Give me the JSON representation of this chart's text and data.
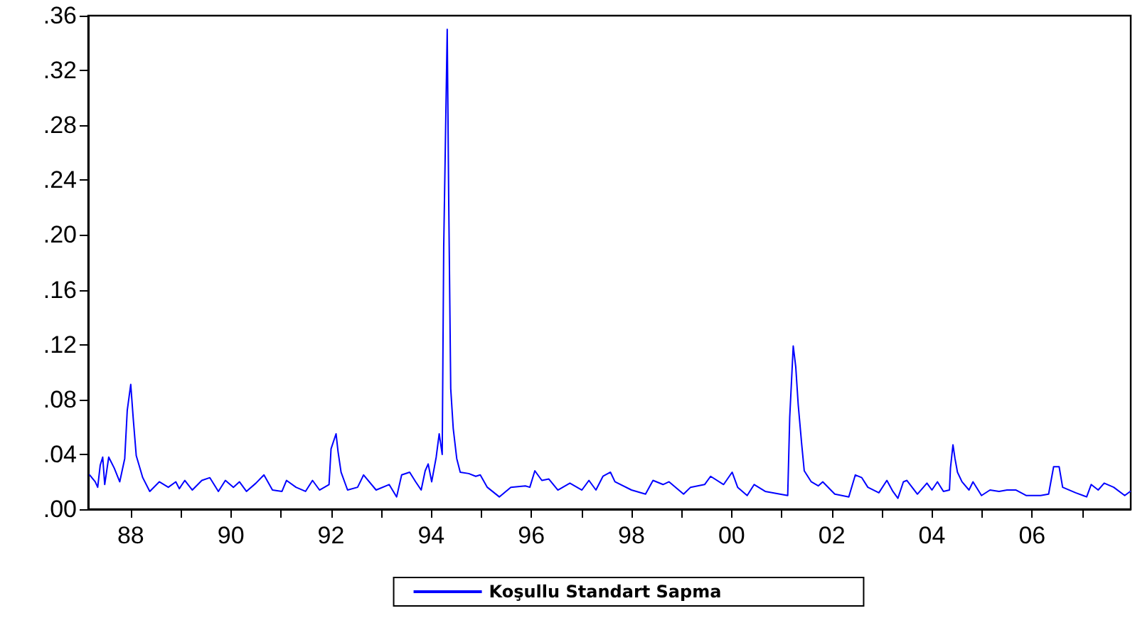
{
  "chart_data": {
    "type": "line",
    "x": [
      1987.18,
      1987.29,
      1987.34,
      1987.39,
      1987.44,
      1987.48,
      1987.56,
      1987.67,
      1987.78,
      1987.88,
      1987.93,
      1988.0,
      1988.05,
      1988.11,
      1988.24,
      1988.38,
      1988.57,
      1988.75,
      1988.9,
      1988.97,
      1989.08,
      1989.23,
      1989.42,
      1989.58,
      1989.75,
      1989.89,
      1990.05,
      1990.17,
      1990.31,
      1990.5,
      1990.66,
      1990.83,
      1991.02,
      1991.11,
      1991.3,
      1991.49,
      1991.63,
      1991.77,
      1991.96,
      1992.0,
      1992.1,
      1992.14,
      1992.2,
      1992.33,
      1992.53,
      1992.65,
      1992.9,
      1993.16,
      1993.31,
      1993.41,
      1993.57,
      1993.69,
      1993.8,
      1993.88,
      1993.94,
      1994.01,
      1994.1,
      1994.16,
      1994.22,
      1994.25,
      1994.32,
      1994.35,
      1994.39,
      1994.44,
      1994.51,
      1994.58,
      1994.75,
      1994.89,
      1994.98,
      1995.12,
      1995.36,
      1995.59,
      1995.88,
      1995.97,
      1996.07,
      1996.21,
      1996.35,
      1996.53,
      1996.77,
      1997.01,
      1997.15,
      1997.29,
      1997.43,
      1997.58,
      1997.67,
      1998.0,
      1998.28,
      1998.43,
      1998.63,
      1998.75,
      1999.04,
      1999.18,
      1999.46,
      1999.58,
      1999.84,
      2000.01,
      2000.12,
      2000.31,
      2000.45,
      2000.67,
      2001.12,
      2001.16,
      2001.23,
      2001.28,
      2001.33,
      2001.4,
      2001.45,
      2001.59,
      2001.73,
      2001.82,
      2002.06,
      2002.34,
      2002.47,
      2002.6,
      2002.72,
      2002.94,
      2003.1,
      2003.22,
      2003.32,
      2003.43,
      2003.5,
      2003.71,
      2003.9,
      2004.0,
      2004.11,
      2004.23,
      2004.35,
      2004.37,
      2004.42,
      2004.46,
      2004.51,
      2004.6,
      2004.74,
      2004.82,
      2004.99,
      2005.16,
      2005.34,
      2005.5,
      2005.68,
      2005.88,
      2006.17,
      2006.33,
      2006.43,
      2006.54,
      2006.61,
      2006.87,
      2007.09,
      2007.18,
      2007.32,
      2007.44,
      2007.63,
      2007.85,
      2007.96
    ],
    "series": [
      {
        "name": "Koşullu Standart Sapma",
        "color": "#0000ff",
        "values": [
          0.025,
          0.02,
          0.016,
          0.032,
          0.038,
          0.018,
          0.038,
          0.03,
          0.02,
          0.037,
          0.072,
          0.091,
          0.066,
          0.039,
          0.023,
          0.013,
          0.02,
          0.016,
          0.02,
          0.015,
          0.021,
          0.014,
          0.021,
          0.023,
          0.013,
          0.021,
          0.016,
          0.02,
          0.013,
          0.019,
          0.025,
          0.014,
          0.013,
          0.021,
          0.016,
          0.013,
          0.021,
          0.014,
          0.018,
          0.044,
          0.055,
          0.042,
          0.027,
          0.014,
          0.016,
          0.025,
          0.014,
          0.018,
          0.009,
          0.025,
          0.027,
          0.02,
          0.014,
          0.028,
          0.033,
          0.02,
          0.038,
          0.055,
          0.04,
          0.191,
          0.35,
          0.225,
          0.088,
          0.059,
          0.037,
          0.027,
          0.026,
          0.024,
          0.025,
          0.016,
          0.009,
          0.016,
          0.017,
          0.016,
          0.028,
          0.021,
          0.022,
          0.014,
          0.019,
          0.014,
          0.021,
          0.014,
          0.024,
          0.027,
          0.02,
          0.014,
          0.011,
          0.021,
          0.018,
          0.02,
          0.011,
          0.016,
          0.018,
          0.024,
          0.018,
          0.027,
          0.016,
          0.01,
          0.018,
          0.013,
          0.01,
          0.067,
          0.119,
          0.104,
          0.076,
          0.047,
          0.028,
          0.02,
          0.017,
          0.02,
          0.011,
          0.009,
          0.025,
          0.023,
          0.016,
          0.012,
          0.021,
          0.013,
          0.008,
          0.02,
          0.021,
          0.011,
          0.019,
          0.014,
          0.02,
          0.013,
          0.014,
          0.03,
          0.047,
          0.037,
          0.027,
          0.02,
          0.014,
          0.02,
          0.01,
          0.014,
          0.013,
          0.014,
          0.014,
          0.01,
          0.01,
          0.011,
          0.031,
          0.031,
          0.016,
          0.012,
          0.009,
          0.018,
          0.014,
          0.019,
          0.016,
          0.01,
          0.013
        ]
      }
    ],
    "xlim": [
      1987.15,
      2007.97
    ],
    "xticks": [
      {
        "value": 1988,
        "label": "88"
      },
      {
        "value": 1989,
        "label": null
      },
      {
        "value": 1990,
        "label": "90"
      },
      {
        "value": 1991,
        "label": null
      },
      {
        "value": 1992,
        "label": "92"
      },
      {
        "value": 1993,
        "label": null
      },
      {
        "value": 1994,
        "label": "94"
      },
      {
        "value": 1995,
        "label": null
      },
      {
        "value": 1996,
        "label": "96"
      },
      {
        "value": 1997,
        "label": null
      },
      {
        "value": 1998,
        "label": "98"
      },
      {
        "value": 1999,
        "label": null
      },
      {
        "value": 2000,
        "label": "00"
      },
      {
        "value": 2001,
        "label": null
      },
      {
        "value": 2002,
        "label": "02"
      },
      {
        "value": 2003,
        "label": null
      },
      {
        "value": 2004,
        "label": "04"
      },
      {
        "value": 2005,
        "label": null
      },
      {
        "value": 2006,
        "label": "06"
      },
      {
        "value": 2007,
        "label": null
      }
    ],
    "ylim": [
      0,
      0.36
    ],
    "yticks": [
      {
        "value": 0,
        "label": ".00"
      },
      {
        "value": 0.04,
        "label": ".04"
      },
      {
        "value": 0.08,
        "label": ".08"
      },
      {
        "value": 0.12,
        "label": ".12"
      },
      {
        "value": 0.16,
        "label": ".16"
      },
      {
        "value": 0.2,
        "label": ".20"
      },
      {
        "value": 0.24,
        "label": ".24"
      },
      {
        "value": 0.28,
        "label": ".28"
      },
      {
        "value": 0.32,
        "label": ".32"
      },
      {
        "value": 0.36,
        "label": ".36"
      }
    ],
    "grid": false,
    "legend": "bottom",
    "marker": "none",
    "line_style": "solid"
  }
}
